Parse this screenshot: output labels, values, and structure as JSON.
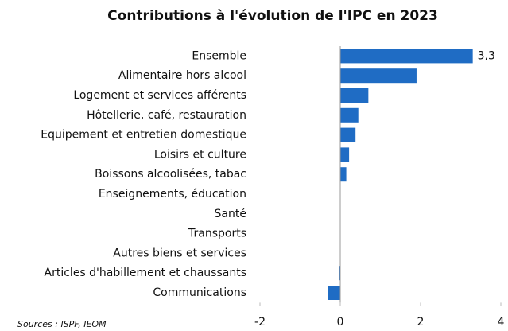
{
  "chart_data": {
    "type": "hbar",
    "title": "Contributions à l'évolution de l'IPC en 2023",
    "categories": [
      "Ensemble",
      "Alimentaire hors alcool",
      "Logement et services afférents",
      "Hôtellerie, café, restauration",
      "Equipement et entretien domestique",
      "Loisirs et culture",
      "Boissons alcoolisées, tabac",
      "Enseignements, éducation",
      "Santé",
      "Transports",
      "Autres biens et services",
      "Articles d'habillement et chaussants",
      "Communications"
    ],
    "values": [
      3.3,
      1.9,
      0.7,
      0.45,
      0.38,
      0.22,
      0.15,
      0,
      0,
      0,
      0,
      -0.03,
      -0.3
    ],
    "value_labels": [
      "3,3",
      null,
      null,
      null,
      null,
      null,
      null,
      null,
      null,
      null,
      null,
      null,
      null
    ],
    "color": "#1f6cc4",
    "xlim": [
      -2,
      4
    ],
    "xticks": [
      -2,
      0,
      2,
      4
    ],
    "source": "Sources : ISPF, IEOM"
  }
}
